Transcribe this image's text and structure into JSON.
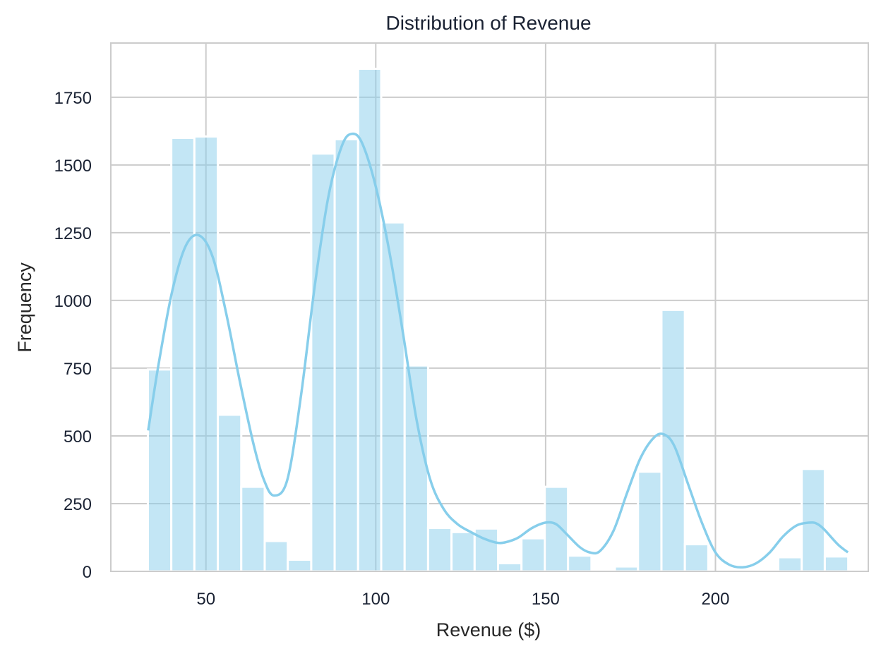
{
  "chart_data": {
    "type": "histogram",
    "title": "Distribution of Revenue",
    "xlabel": "Revenue ($)",
    "ylabel": "Frequency",
    "xlim": [
      22,
      245
    ],
    "ylim": [
      0,
      1950
    ],
    "xticks": [
      50,
      100,
      150,
      200
    ],
    "yticks": [
      0,
      250,
      500,
      750,
      1000,
      1250,
      1500,
      1750
    ],
    "grid": true,
    "bar_color": "#87CEEB",
    "kde_color": "#87CEEB",
    "bins": [
      {
        "x0": 32.9,
        "x1": 39.8,
        "value": 745
      },
      {
        "x0": 39.8,
        "x1": 46.6,
        "value": 1600
      },
      {
        "x0": 46.6,
        "x1": 53.5,
        "value": 1605
      },
      {
        "x0": 53.5,
        "x1": 60.4,
        "value": 578
      },
      {
        "x0": 60.4,
        "x1": 67.3,
        "value": 312
      },
      {
        "x0": 67.3,
        "x1": 74.1,
        "value": 112
      },
      {
        "x0": 74.1,
        "x1": 81.0,
        "value": 43
      },
      {
        "x0": 81.0,
        "x1": 87.9,
        "value": 1542
      },
      {
        "x0": 87.9,
        "x1": 94.8,
        "value": 1595
      },
      {
        "x0": 94.8,
        "x1": 101.6,
        "value": 1855
      },
      {
        "x0": 101.6,
        "x1": 108.5,
        "value": 1288
      },
      {
        "x0": 108.5,
        "x1": 115.4,
        "value": 760
      },
      {
        "x0": 115.4,
        "x1": 122.3,
        "value": 160
      },
      {
        "x0": 122.3,
        "x1": 129.1,
        "value": 145
      },
      {
        "x0": 129.1,
        "x1": 136.0,
        "value": 158
      },
      {
        "x0": 136.0,
        "x1": 142.9,
        "value": 30
      },
      {
        "x0": 142.9,
        "x1": 149.8,
        "value": 122
      },
      {
        "x0": 149.8,
        "x1": 156.6,
        "value": 312
      },
      {
        "x0": 156.6,
        "x1": 163.5,
        "value": 58
      },
      {
        "x0": 163.5,
        "x1": 170.4,
        "value": 0
      },
      {
        "x0": 170.4,
        "x1": 177.2,
        "value": 18
      },
      {
        "x0": 177.2,
        "x1": 184.1,
        "value": 368
      },
      {
        "x0": 184.1,
        "x1": 191.0,
        "value": 965
      },
      {
        "x0": 191.0,
        "x1": 197.9,
        "value": 100
      },
      {
        "x0": 197.9,
        "x1": 204.7,
        "value": 0
      },
      {
        "x0": 204.7,
        "x1": 211.6,
        "value": 0
      },
      {
        "x0": 211.6,
        "x1": 218.5,
        "value": 0
      },
      {
        "x0": 218.5,
        "x1": 225.4,
        "value": 52
      },
      {
        "x0": 225.4,
        "x1": 232.2,
        "value": 378
      },
      {
        "x0": 232.2,
        "x1": 239.1,
        "value": 55
      }
    ],
    "kde": {
      "x": [
        33,
        36,
        40,
        44,
        48,
        52,
        56,
        60,
        64,
        67,
        70,
        74,
        78,
        82,
        86,
        90,
        93,
        96,
        100,
        104,
        108,
        112,
        116,
        120,
        124,
        128,
        132,
        136,
        139,
        142,
        146,
        150,
        153,
        156,
        160,
        163,
        166,
        170,
        174,
        178,
        182,
        185,
        188,
        192,
        196,
        200,
        204,
        208,
        212,
        216,
        220,
        224,
        228,
        230,
        232,
        236,
        239
      ],
      "y": [
        520,
        760,
        1030,
        1200,
        1240,
        1160,
        950,
        700,
        470,
        340,
        280,
        340,
        650,
        1050,
        1380,
        1570,
        1615,
        1580,
        1420,
        1180,
        880,
        560,
        340,
        230,
        175,
        145,
        120,
        105,
        110,
        125,
        160,
        180,
        175,
        140,
        90,
        70,
        75,
        150,
        290,
        420,
        495,
        505,
        460,
        320,
        180,
        70,
        25,
        15,
        30,
        70,
        130,
        170,
        180,
        175,
        155,
        100,
        70
      ]
    }
  }
}
